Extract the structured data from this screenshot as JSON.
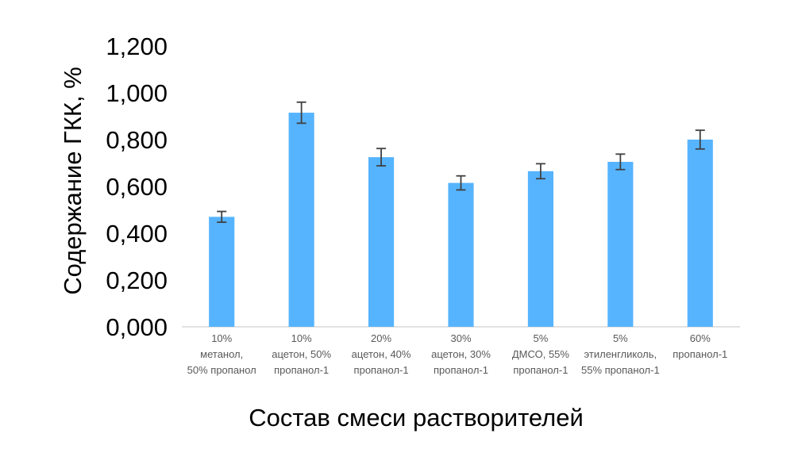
{
  "chart_data": {
    "type": "bar",
    "title": "",
    "xlabel": "Состав смеси растворителей",
    "ylabel": "Содержание ГКК, %",
    "ylim": [
      0,
      1.2
    ],
    "yticks": [
      "0,000",
      "0,200",
      "0,400",
      "0,600",
      "0,800",
      "1,000",
      "1,200"
    ],
    "grid": false,
    "legend": "none",
    "bar_color": "#56B4FF",
    "error_color": "#404040",
    "categories": [
      [
        "10%",
        "метанол,",
        "50% пропанол"
      ],
      [
        "10%",
        "ацетон, 50%",
        "пропанол-1"
      ],
      [
        "20%",
        "ацетон, 40%",
        "пропанол-1"
      ],
      [
        "30%",
        "ацетон, 30%",
        "пропанол-1"
      ],
      [
        "5%",
        "ДМСО, 55%",
        "пропанол-1"
      ],
      [
        "5%",
        "этиленгликоль,",
        "55% пропанол-1"
      ],
      [
        "60%",
        "пропанол-1"
      ]
    ],
    "values": [
      0.47,
      0.915,
      0.725,
      0.615,
      0.665,
      0.705,
      0.8
    ],
    "errors": [
      0.023,
      0.045,
      0.037,
      0.03,
      0.032,
      0.033,
      0.04
    ]
  }
}
